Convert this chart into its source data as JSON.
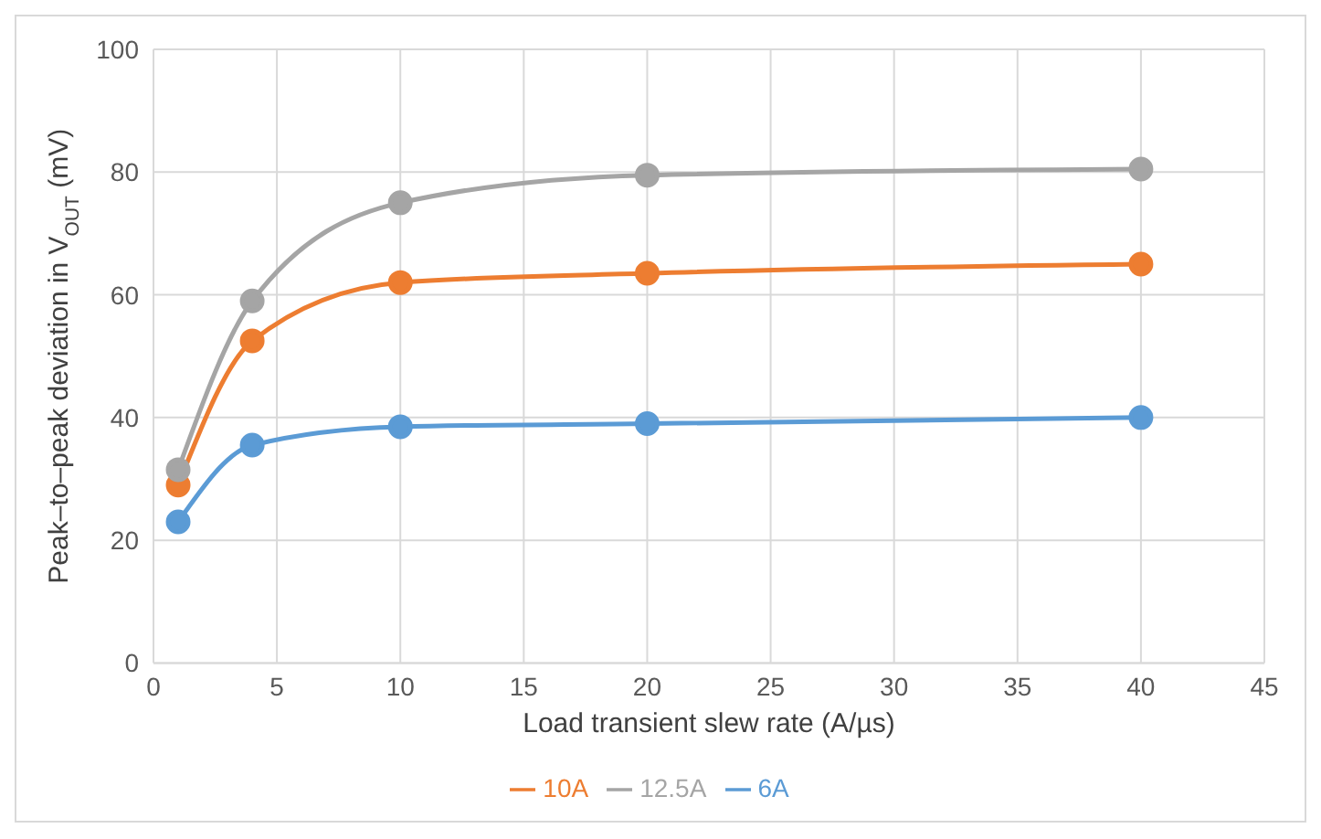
{
  "chart_data": {
    "type": "line",
    "xlabel": "Load transient slew rate (A/µs)",
    "ylabel": "Peak–to–peak deviation in V$_{OUT}$ (mV)",
    "x": [
      1,
      4,
      10,
      20,
      40
    ],
    "series": [
      {
        "name": "6A",
        "color": "#5b9bd5",
        "values": [
          23,
          35.5,
          38.5,
          39,
          40
        ]
      },
      {
        "name": "10A",
        "color": "#ed7d31",
        "values": [
          29,
          52.5,
          62,
          63.5,
          65
        ]
      },
      {
        "name": "12.5A",
        "color": "#a5a5a5",
        "values": [
          31.5,
          59,
          75,
          79.5,
          80.5
        ]
      }
    ],
    "xlim": [
      0,
      45
    ],
    "xticks": [
      0,
      5,
      10,
      15,
      20,
      25,
      30,
      35,
      40,
      45
    ],
    "ylim": [
      0,
      100
    ],
    "yticks": [
      0,
      20,
      40,
      60,
      80,
      100
    ],
    "grid": true,
    "legend": "bottom",
    "marker": "circle",
    "line_style": "solid"
  }
}
